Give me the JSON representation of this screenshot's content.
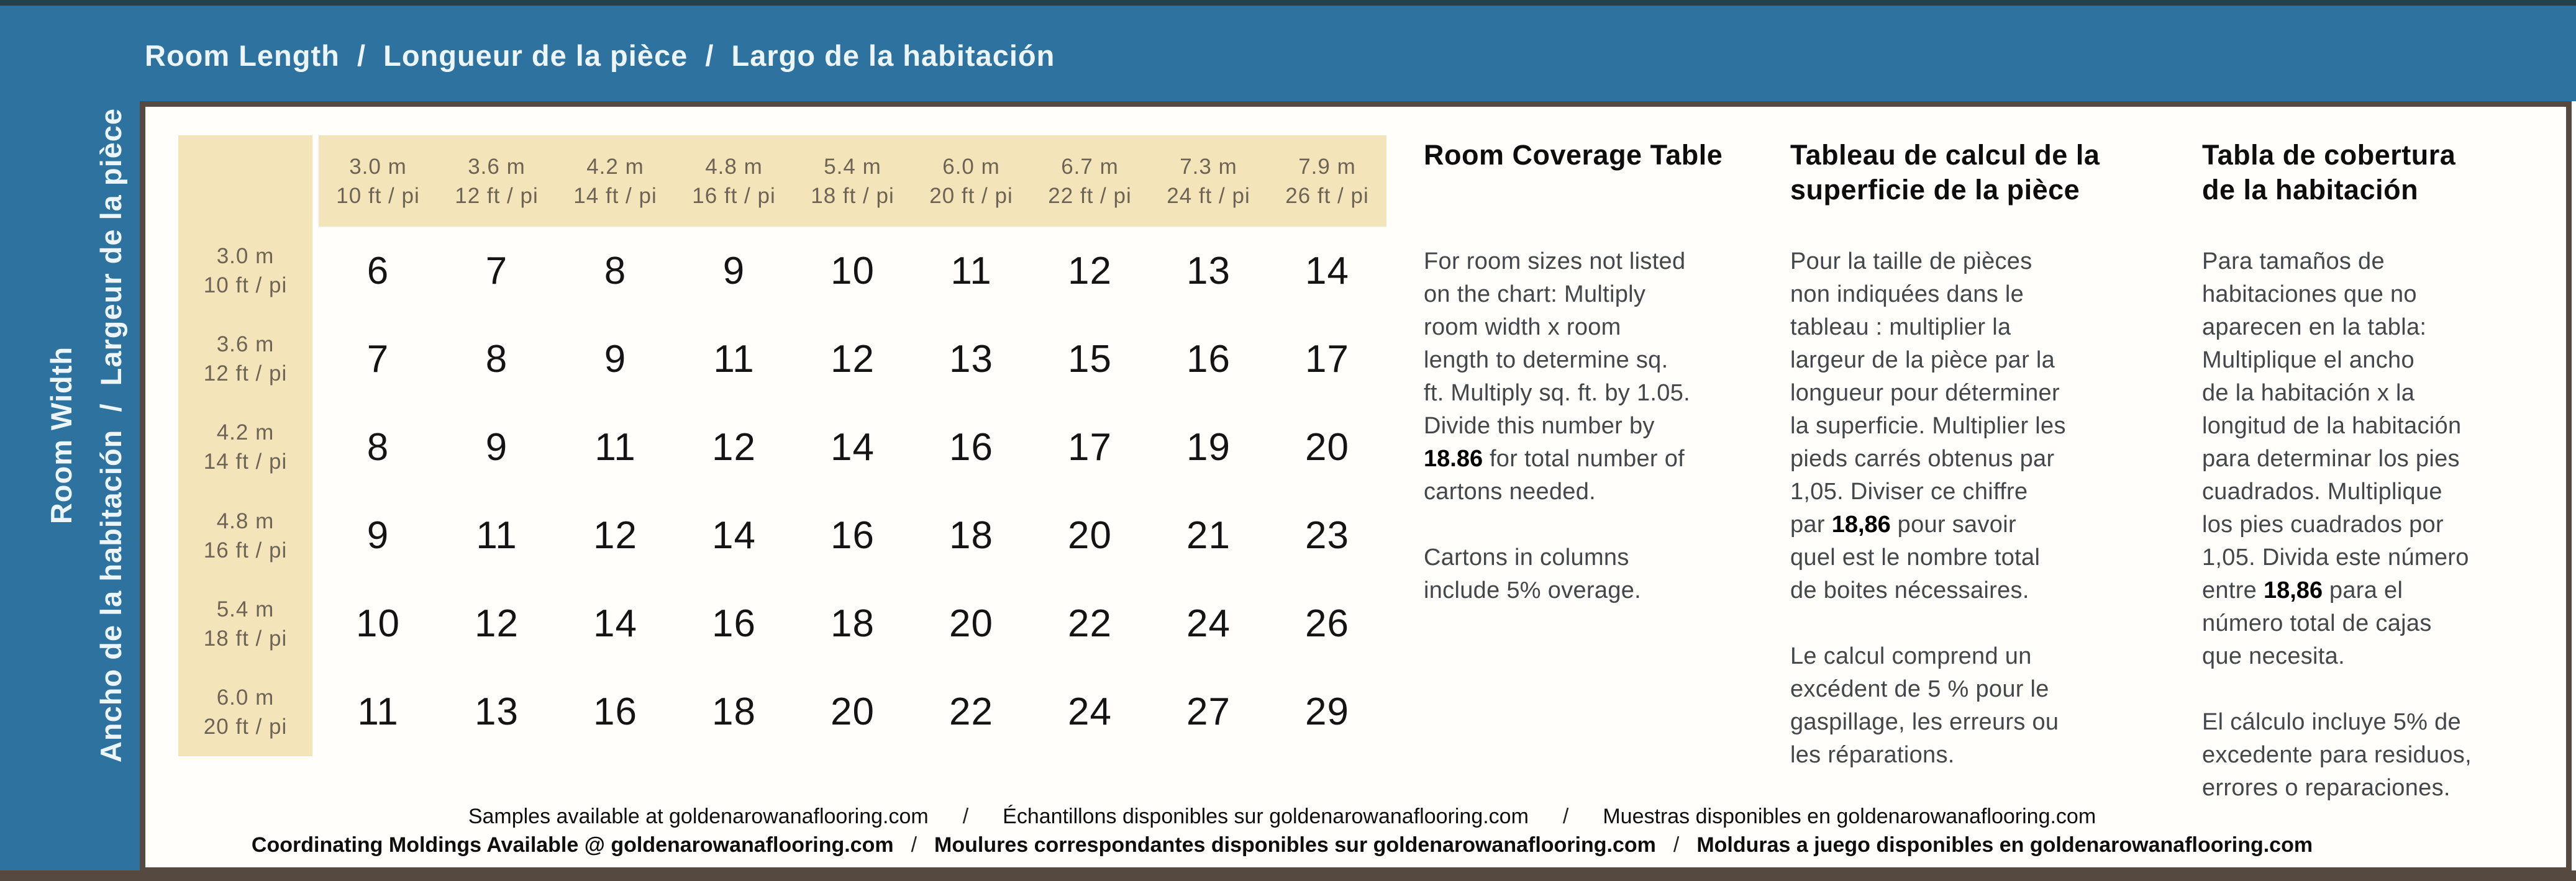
{
  "header": {
    "title": "Room Length  /  Longueur de la pièce  /  Largo de la habitación"
  },
  "sidebar": {
    "line1": "Room Width",
    "line2": "Ancho de la habitación  /  Largeur de la pièce"
  },
  "table": {
    "columns": [
      {
        "m": "3.0 m",
        "ft": "10 ft / pi"
      },
      {
        "m": "3.6 m",
        "ft": "12 ft / pi"
      },
      {
        "m": "4.2 m",
        "ft": "14 ft / pi"
      },
      {
        "m": "4.8 m",
        "ft": "16 ft / pi"
      },
      {
        "m": "5.4 m",
        "ft": "18 ft / pi"
      },
      {
        "m": "6.0 m",
        "ft": "20 ft / pi"
      },
      {
        "m": "6.7 m",
        "ft": "22 ft / pi"
      },
      {
        "m": "7.3 m",
        "ft": "24 ft / pi"
      },
      {
        "m": "7.9 m",
        "ft": "26 ft / pi"
      }
    ],
    "rows": [
      {
        "m": "3.0 m",
        "ft": "10 ft / pi",
        "values": [
          6,
          7,
          8,
          9,
          10,
          11,
          12,
          13,
          14
        ]
      },
      {
        "m": "3.6 m",
        "ft": "12 ft / pi",
        "values": [
          7,
          8,
          9,
          11,
          12,
          13,
          15,
          16,
          17
        ]
      },
      {
        "m": "4.2 m",
        "ft": "14 ft / pi",
        "values": [
          8,
          9,
          11,
          12,
          14,
          16,
          17,
          19,
          20
        ]
      },
      {
        "m": "4.8 m",
        "ft": "16 ft / pi",
        "values": [
          9,
          11,
          12,
          14,
          16,
          18,
          20,
          21,
          23
        ]
      },
      {
        "m": "5.4 m",
        "ft": "18 ft / pi",
        "values": [
          10,
          12,
          14,
          16,
          18,
          20,
          22,
          24,
          26
        ]
      },
      {
        "m": "6.0 m",
        "ft": "20 ft / pi",
        "values": [
          11,
          13,
          16,
          18,
          20,
          22,
          24,
          27,
          29
        ]
      }
    ]
  },
  "sections": {
    "english": {
      "title": "Room Coverage Table",
      "p1a": "For room sizes not listed\non the chart: Multiply\nroom width x room\nlength to determine sq.\nft. Multiply sq. ft. by 1.05.\nDivide this number by\n",
      "p1num": "18.86",
      "p1b": " for total number of\ncartons needed.",
      "p2": "Cartons in columns\ninclude 5% overage."
    },
    "french": {
      "title": "Tableau de calcul de la\nsuperficie de la pièce",
      "p1a": "Pour la taille de pièces\nnon indiquées dans le\ntableau :  multiplier la\nlargeur de la pièce par la\nlongueur pour déterminer\nla superficie. Multiplier les\npieds carrés obtenus par\n1,05. Diviser ce chiffre\npar ",
      "p1num": "18,86",
      "p1b": " pour savoir\nquel est le nombre total\nde boites nécessaires.",
      "p2": "Le calcul comprend un\nexcédent de 5 % pour le\ngaspillage, les erreurs ou\nles réparations."
    },
    "spanish": {
      "title": "Tabla de cobertura\nde la habitación",
      "p1a": "Para tamaños de\nhabitaciones que no\naparecen en la tabla:\nMultiplique el ancho\nde la habitación x la\nlongitud de la habitación\npara determinar los pies\ncuadrados. Multiplique\nlos pies cuadrados por\n1,05. Divida este número\nentre ",
      "p1num": "18,86",
      "p1b": " para el\nnúmero total de cajas\nque necesita.",
      "p2": "El cálculo incluye 5% de\nexcedente para residuos,\nerrores o reparaciones."
    }
  },
  "footer": {
    "sep": "/",
    "line1": [
      "Samples available at goldenarowanaflooring.com",
      "Échantillons disponibles sur goldenarowanaflooring.com",
      "Muestras disponibles en goldenarowanaflooring.com"
    ],
    "line2": [
      "Coordinating Moldings Available @ goldenarowanaflooring.com",
      "Moulures correspondantes disponibles sur goldenarowanaflooring.com",
      "Molduras a juego disponibles en goldenarowanaflooring.com"
    ]
  },
  "colors": {
    "band_blue": "#2e739f",
    "cream": "#f4e4ba",
    "border_dark": "#564a40",
    "header_text": "#6d6455",
    "body_text": "#43474a",
    "band_text": "#ecf5fa"
  }
}
